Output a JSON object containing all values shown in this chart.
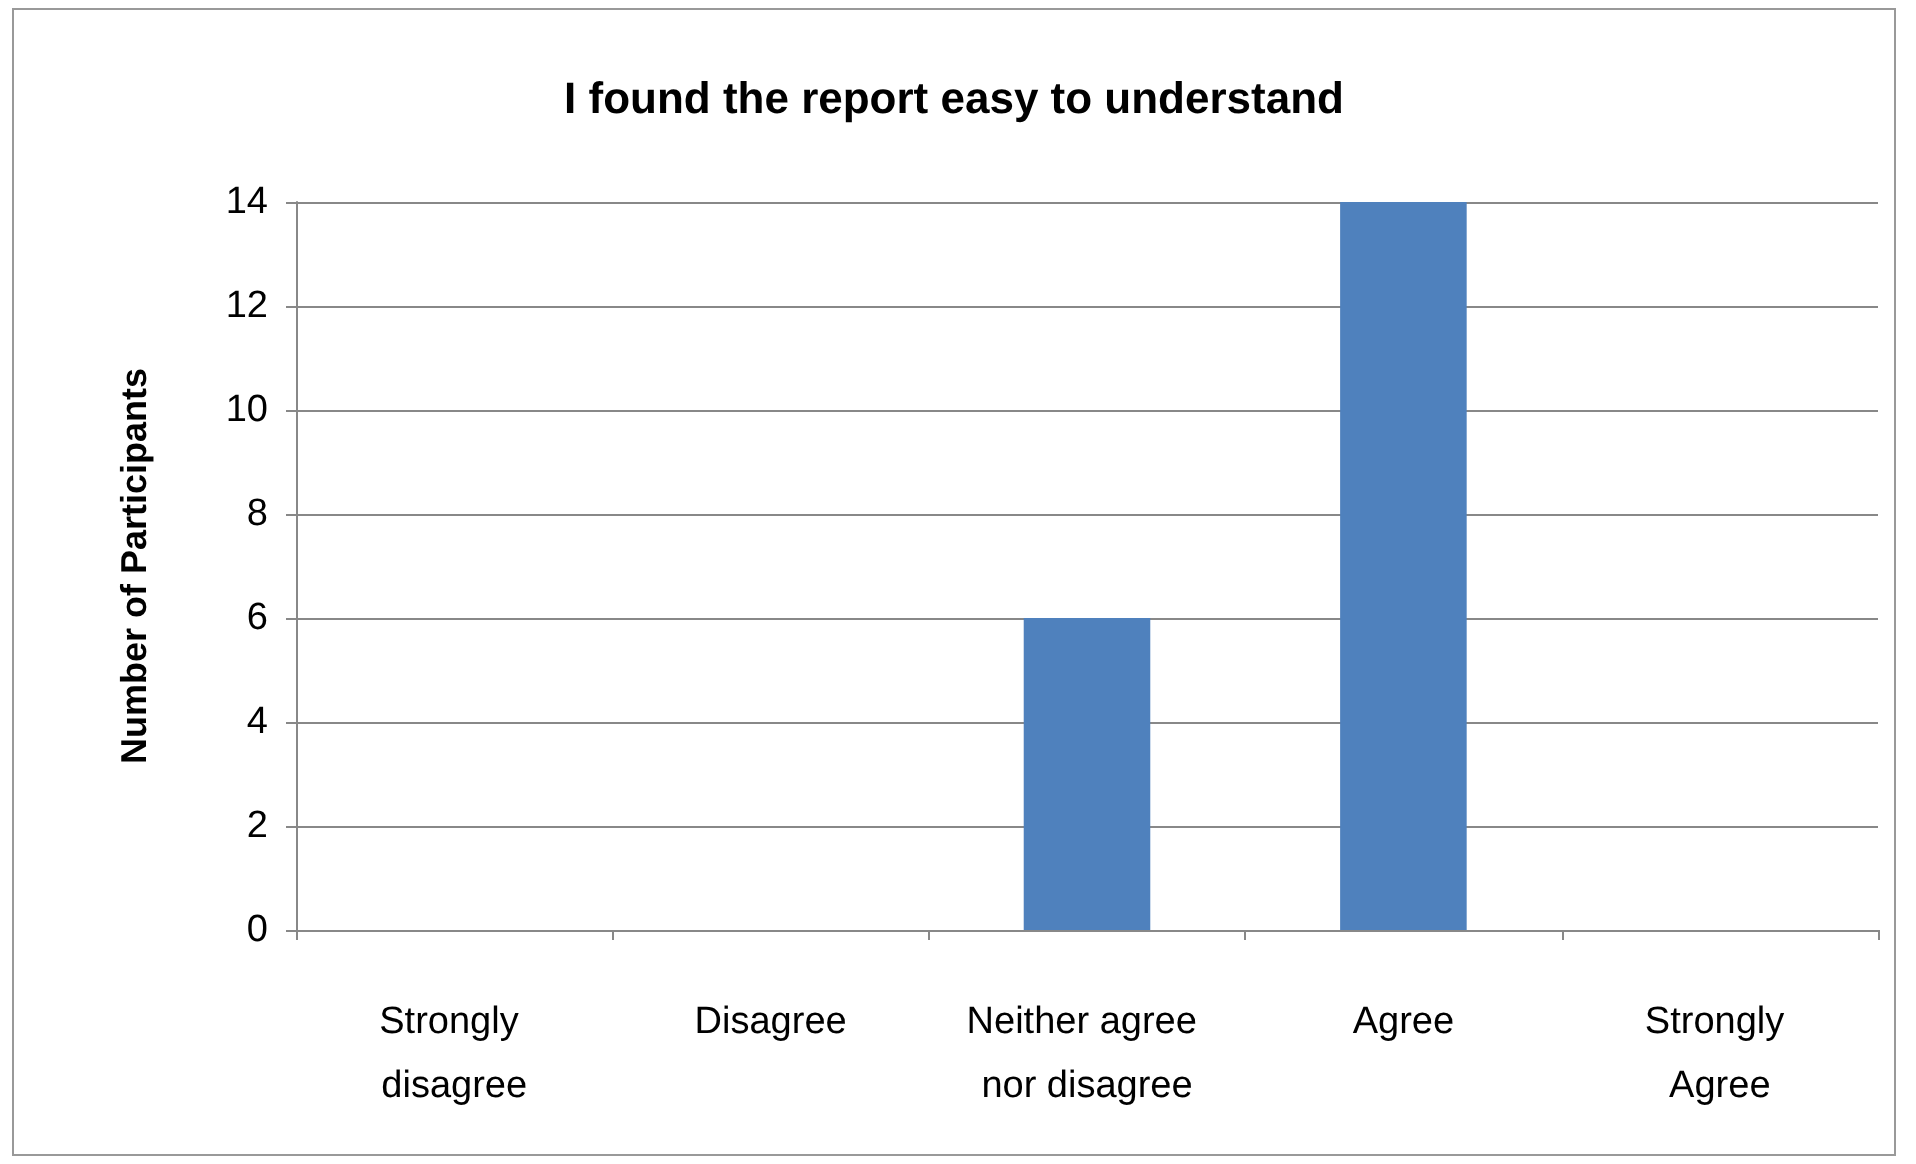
{
  "chart_data": {
    "type": "bar",
    "title": "I found the report easy to understand",
    "ylabel": "Number of Participants",
    "categories": [
      "Strongly disagree",
      "Disagree",
      "Neither agree nor disagree",
      "Agree",
      "Strongly Agree"
    ],
    "values": [
      0,
      0,
      6,
      14,
      0
    ],
    "color": "#4f81bd",
    "ylim": [
      0,
      14
    ],
    "yticks": [
      0,
      2,
      4,
      6,
      8,
      10,
      12,
      14
    ],
    "grid": "y"
  }
}
